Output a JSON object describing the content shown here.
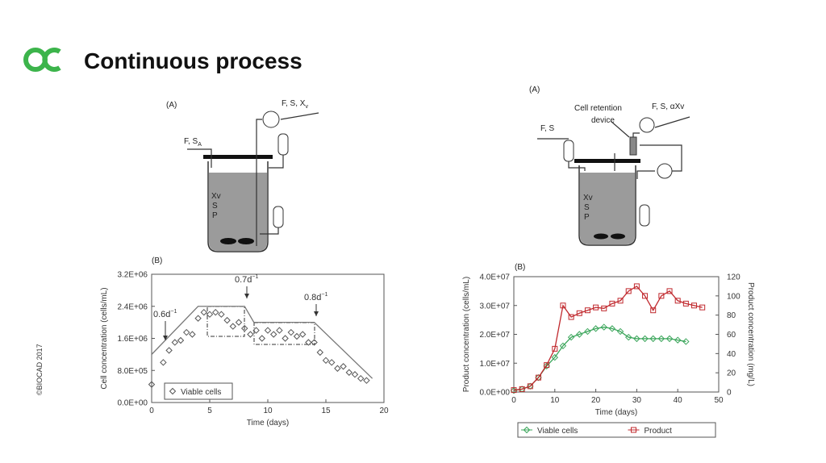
{
  "slide": {
    "title": "Continuous process",
    "copyright": "©BIOCAD 2017"
  },
  "diagram_left": {
    "label": "(A)",
    "inlet": {
      "text": "F, S",
      "subscript": "A"
    },
    "outlet": {
      "text": "F, S, X",
      "subscript": "v"
    },
    "contents": [
      "Xv",
      "S",
      "P"
    ],
    "chart_label": "(B)"
  },
  "diagram_right": {
    "label": "(A)",
    "device": [
      "Cell retention",
      "device"
    ],
    "outlet": "F, S, αXv",
    "inlet": "F, S",
    "contents": [
      "Xv",
      "S",
      "P"
    ],
    "chart_label": "(B)"
  },
  "chart_data": [
    {
      "type": "line",
      "x_label": "Time (days)",
      "y_label": "Cell concentration (cells/mL)",
      "xlim": [
        0,
        20
      ],
      "xticks": [
        0,
        5,
        10,
        15,
        20
      ],
      "ylim": [
        0,
        3200000
      ],
      "yticks": [
        {
          "value": 0,
          "label": "0.0E+00"
        },
        {
          "value": 800000,
          "label": "8.0E+05"
        },
        {
          "value": 1600000,
          "label": "1.6E+06"
        },
        {
          "value": 2400000,
          "label": "2.4E+06"
        },
        {
          "value": 3200000,
          "label": "3.2E+06"
        }
      ],
      "legend": "bottom-left",
      "annotations": [
        {
          "text": "0.6d",
          "superscript": "−1"
        },
        {
          "text": "0.7d",
          "superscript": "−1"
        },
        {
          "text": "0.8d",
          "superscript": "−1"
        }
      ],
      "series": [
        {
          "style": "line",
          "color": "#777777",
          "x": [
            0,
            4,
            8,
            8.8,
            14,
            19
          ],
          "values": [
            1200000,
            2400000,
            2400000,
            2000000,
            2000000,
            600000
          ]
        },
        {
          "name": "Viable cells",
          "style": "markers",
          "marker": "diamond",
          "color": "#555555",
          "x": [
            0,
            1,
            1.5,
            2,
            2.5,
            3,
            3.5,
            4,
            4.5,
            5,
            5.5,
            6,
            6.5,
            7,
            7.5,
            8,
            8.5,
            9,
            9.5,
            10,
            10.5,
            11,
            11.5,
            12,
            12.5,
            13,
            13.5,
            14,
            14.5,
            15,
            15.5,
            16,
            16.5,
            17,
            17.5,
            18,
            18.5
          ],
          "values": [
            450000,
            1000000,
            1300000,
            1500000,
            1550000,
            1750000,
            1700000,
            2100000,
            2250000,
            2200000,
            2250000,
            2200000,
            2050000,
            1900000,
            2000000,
            1850000,
            1700000,
            1800000,
            1600000,
            1800000,
            1700000,
            1800000,
            1600000,
            1750000,
            1650000,
            1700000,
            1500000,
            1500000,
            1250000,
            1050000,
            1000000,
            850000,
            900000,
            750000,
            700000,
            600000,
            550000
          ]
        }
      ]
    },
    {
      "type": "line",
      "x_label": "Time (days)",
      "y_label": "Product concentration (cells/mL)",
      "y2_label": "Product concentration (mg/L)",
      "xlim": [
        0,
        50
      ],
      "xticks": [
        0,
        10,
        20,
        30,
        40,
        50
      ],
      "ylim": [
        0,
        40000000
      ],
      "yticks": [
        {
          "value": 0,
          "label": "0.0E+00"
        },
        {
          "value": 10000000,
          "label": "1.0E+07"
        },
        {
          "value": 20000000,
          "label": "2.0E+07"
        },
        {
          "value": 30000000,
          "label": "3.0E+07"
        },
        {
          "value": 40000000,
          "label": "4.0E+07"
        }
      ],
      "y2lim": [
        0,
        120
      ],
      "y2ticks": [
        0,
        20,
        40,
        60,
        80,
        100,
        120
      ],
      "legend": "below",
      "series": [
        {
          "name": "Viable cells",
          "style": "line+markers",
          "marker": "diamond",
          "color": "#3aa55a",
          "x": [
            0,
            2,
            4,
            6,
            8,
            10,
            12,
            14,
            16,
            18,
            20,
            22,
            24,
            26,
            28,
            30,
            32,
            34,
            36,
            38,
            40,
            42
          ],
          "values": [
            500000,
            1000000,
            2000000,
            5000000,
            9000000,
            12000000,
            16000000,
            19000000,
            20000000,
            21000000,
            22000000,
            22500000,
            22000000,
            21000000,
            19000000,
            18500000,
            18500000,
            18500000,
            18500000,
            18500000,
            18000000,
            17500000
          ]
        },
        {
          "name": "Product",
          "style": "line+markers",
          "marker": "square",
          "color": "#c0282d",
          "axis": "y2",
          "x": [
            0,
            2,
            4,
            6,
            8,
            10,
            12,
            14,
            16,
            18,
            20,
            22,
            24,
            26,
            28,
            30,
            32,
            34,
            36,
            38,
            40,
            42,
            44,
            46
          ],
          "values": [
            2,
            3,
            6,
            15,
            28,
            45,
            90,
            78,
            82,
            85,
            88,
            87,
            92,
            95,
            105,
            110,
            100,
            85,
            100,
            105,
            95,
            92,
            90,
            88
          ]
        }
      ]
    }
  ]
}
